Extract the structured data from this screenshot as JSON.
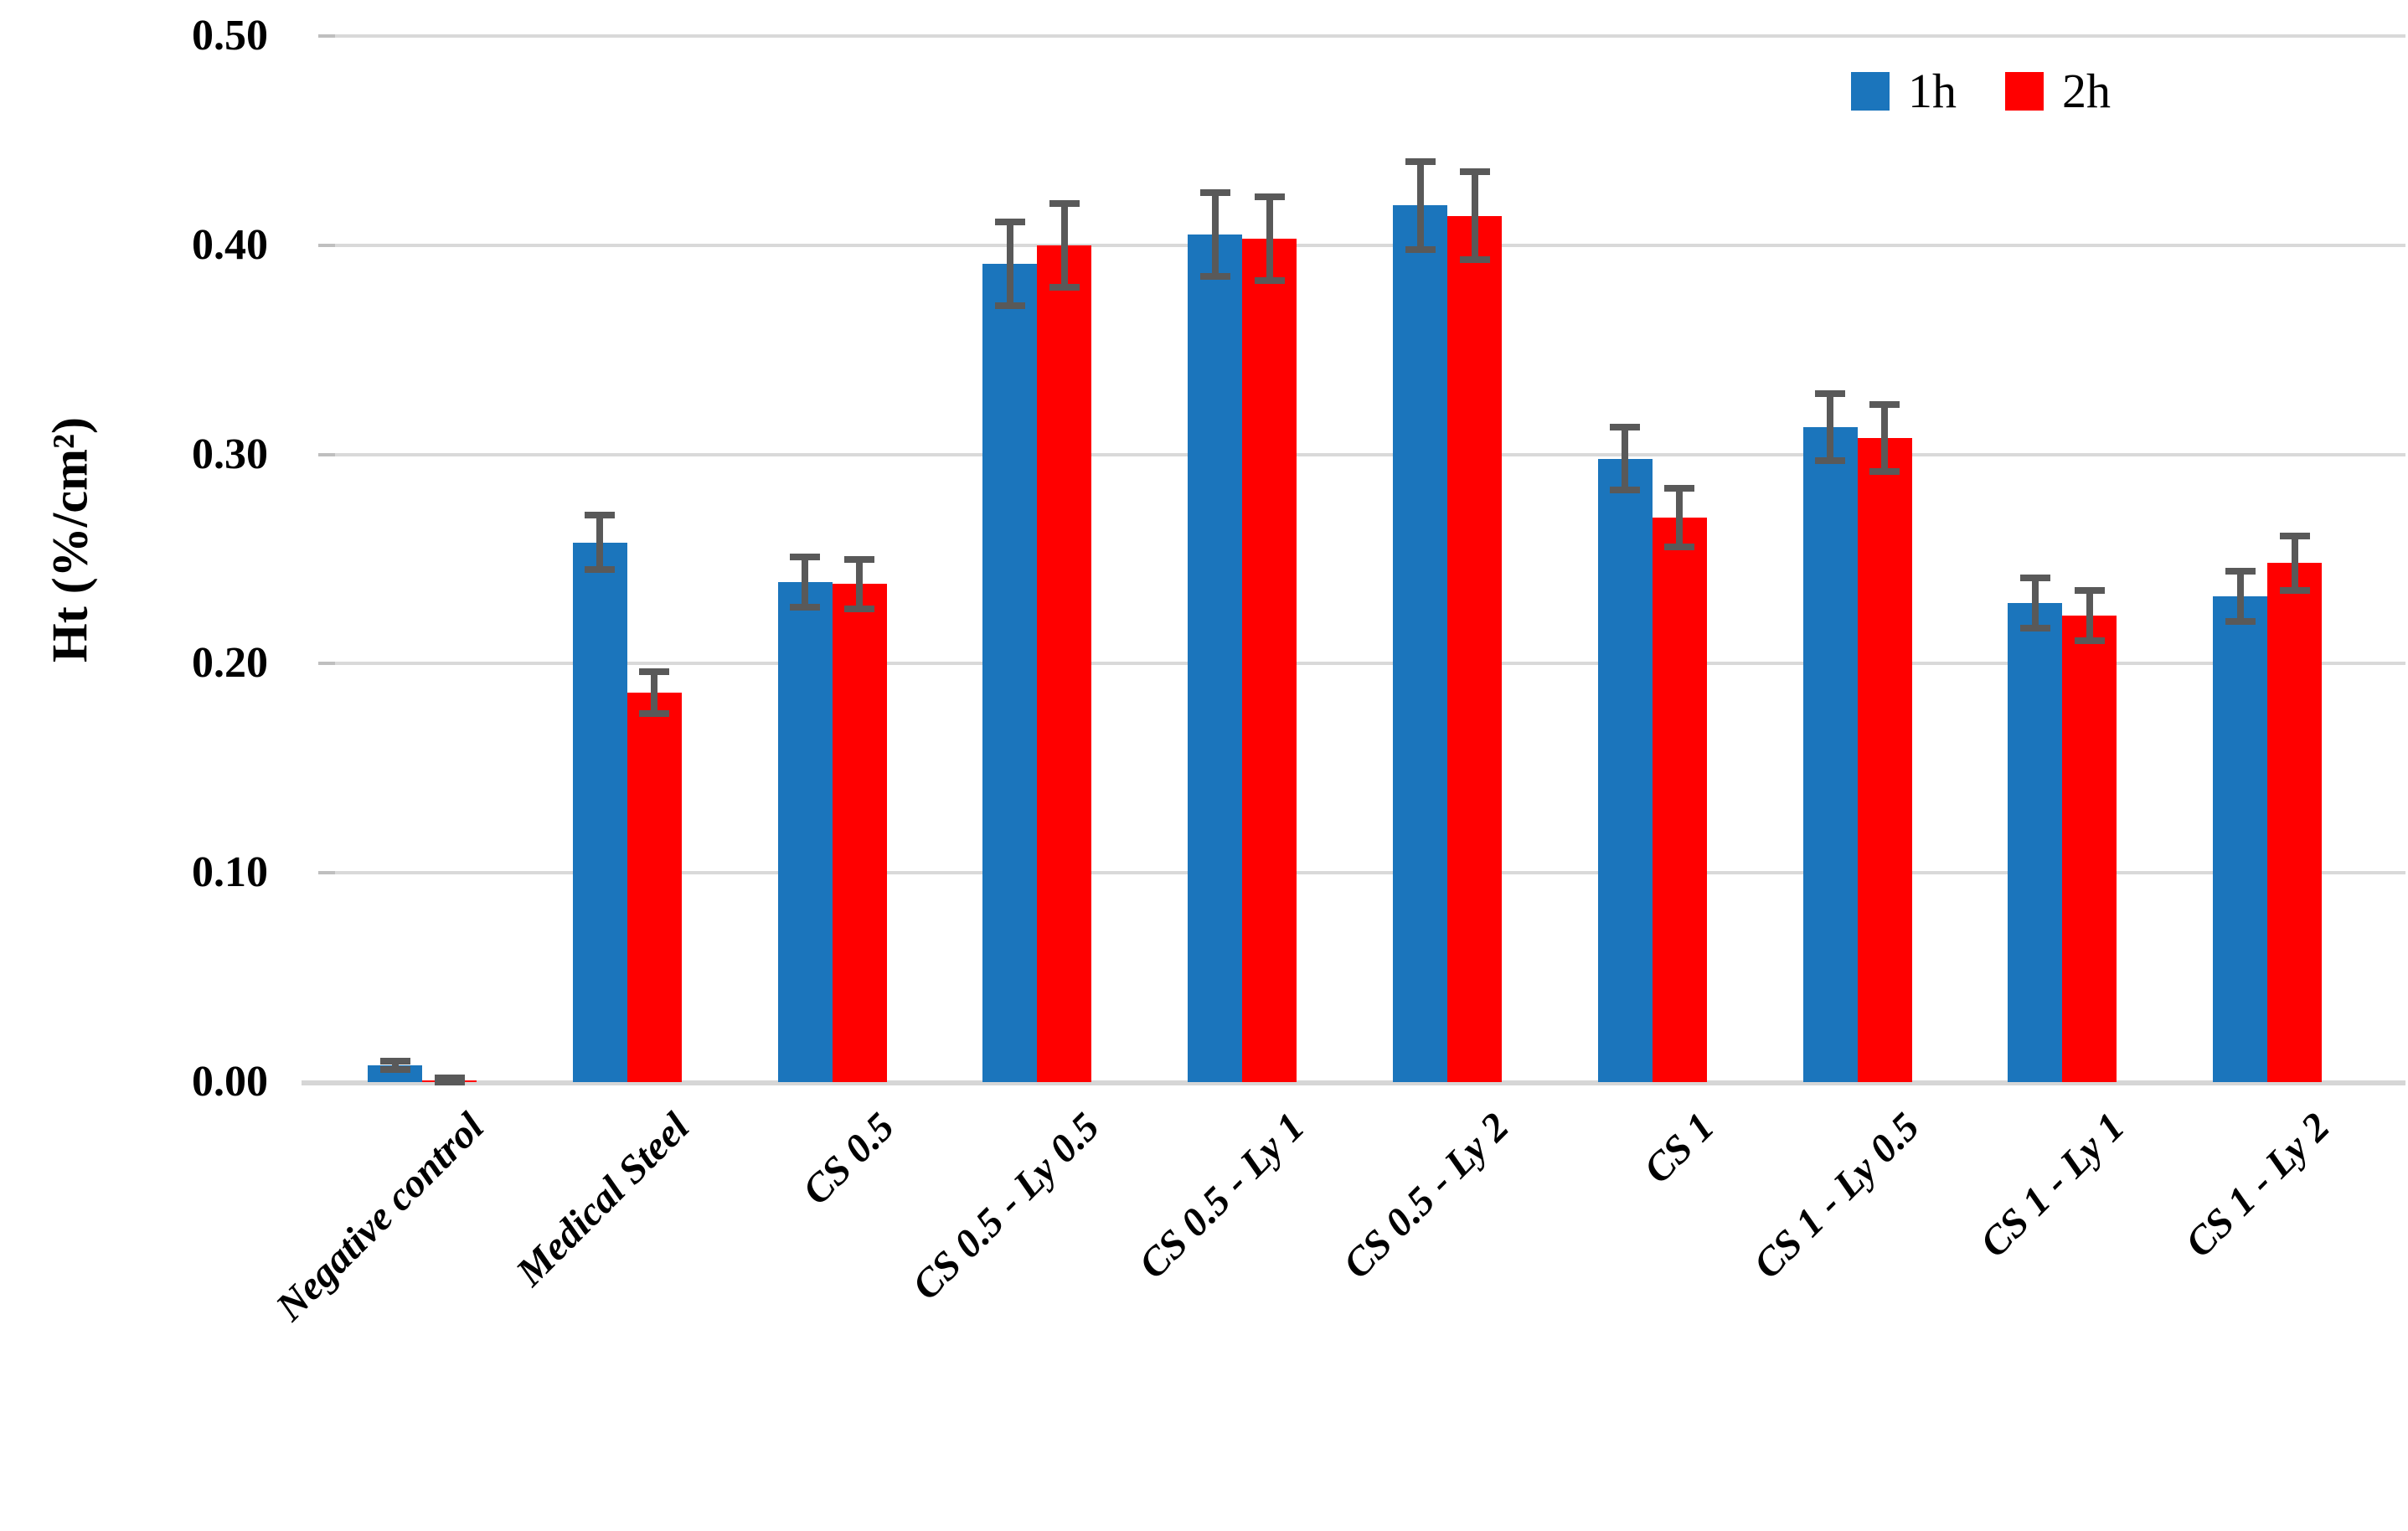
{
  "chart_data": {
    "type": "bar",
    "title": "",
    "xlabel": "",
    "ylabel": "Ht (%/cm²)",
    "ylim": [
      0,
      0.5
    ],
    "yticks": [
      {
        "label": "0.00",
        "value": 0.0
      },
      {
        "label": "0.10",
        "value": 0.1
      },
      {
        "label": "0.20",
        "value": 0.2
      },
      {
        "label": "0.30",
        "value": 0.3
      },
      {
        "label": "0.40",
        "value": 0.4
      },
      {
        "label": "0.50",
        "value": 0.5
      }
    ],
    "grid": "horizontal",
    "legend_position": "top-right",
    "categories": [
      "Negative control",
      "Medical Steel",
      "CS 0.5",
      "CS 0.5 - Ly 0.5",
      "CS 0.5 - Ly 1",
      "CS 0.5 - Ly 2",
      "CS 1",
      "CS 1 - Ly 0.5",
      "CS 1 - Ly 1",
      "CS 1 - Ly 2"
    ],
    "series": [
      {
        "name": "1h",
        "color": "#1B75BC",
        "values": [
          0.008,
          0.258,
          0.239,
          0.391,
          0.405,
          0.419,
          0.298,
          0.313,
          0.229,
          0.232
        ],
        "errors": [
          0.002,
          0.013,
          0.012,
          0.02,
          0.02,
          0.021,
          0.015,
          0.016,
          0.012,
          0.012
        ]
      },
      {
        "name": "2h",
        "color": "#FF0000",
        "values": [
          0.001,
          0.186,
          0.238,
          0.4,
          0.403,
          0.414,
          0.27,
          0.308,
          0.223,
          0.248
        ],
        "errors": [
          0.001,
          0.01,
          0.012,
          0.02,
          0.02,
          0.021,
          0.014,
          0.016,
          0.012,
          0.013
        ]
      }
    ],
    "error_bar_color": "#595959",
    "gridline_color": "#D9D9D9"
  }
}
